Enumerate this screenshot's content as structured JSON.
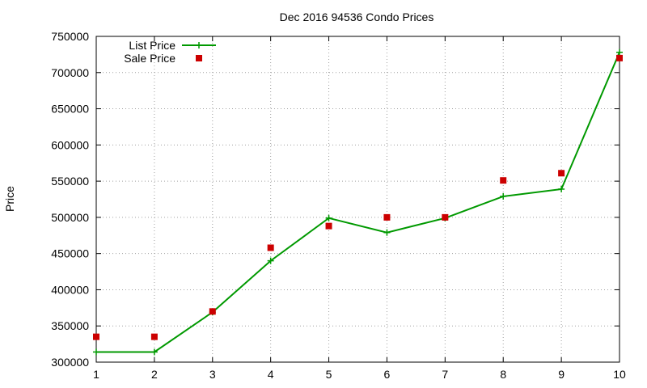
{
  "chart_data": {
    "type": "line",
    "title": "Dec 2016 94536 Condo Prices",
    "xlabel": "",
    "ylabel": "Price",
    "x": [
      1,
      2,
      3,
      4,
      5,
      6,
      7,
      8,
      9,
      10
    ],
    "xlim": [
      1,
      10
    ],
    "ylim": [
      300000,
      750000
    ],
    "xticks": [
      1,
      2,
      3,
      4,
      5,
      6,
      7,
      8,
      9,
      10
    ],
    "yticks": [
      300000,
      350000,
      400000,
      450000,
      500000,
      550000,
      600000,
      650000,
      700000,
      750000
    ],
    "grid": true,
    "legend_position": "top-left",
    "series": [
      {
        "name": "List Price",
        "style": "line+cross",
        "color": "#009900",
        "values": [
          314000,
          314000,
          369000,
          440000,
          499000,
          479000,
          499000,
          529000,
          539000,
          728000
        ]
      },
      {
        "name": "Sale Price",
        "style": "square",
        "color": "#cc0000",
        "values": [
          335000,
          335000,
          370000,
          458000,
          488000,
          500000,
          500000,
          551000,
          561000,
          720000
        ]
      }
    ]
  }
}
